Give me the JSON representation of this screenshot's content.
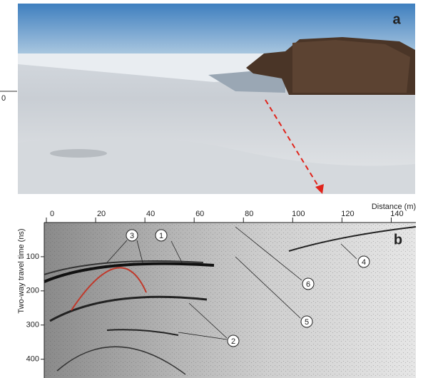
{
  "margin_text": "0",
  "panel_a": {
    "label": "a"
  },
  "panel_b": {
    "label": "b",
    "x_axis_label": "Distance (m)",
    "xlim": [
      0,
      150
    ],
    "xticks": [
      0,
      20,
      40,
      60,
      80,
      100,
      120,
      140
    ],
    "y_axis_label": "Two-way travel time (ns)",
    "ylim": [
      0,
      455
    ],
    "yticks": [
      100,
      200,
      300,
      400
    ],
    "annotations": [
      {
        "label": "1"
      },
      {
        "label": "2"
      },
      {
        "label": "3"
      },
      {
        "label": "4"
      },
      {
        "label": "5"
      },
      {
        "label": "6"
      }
    ]
  }
}
